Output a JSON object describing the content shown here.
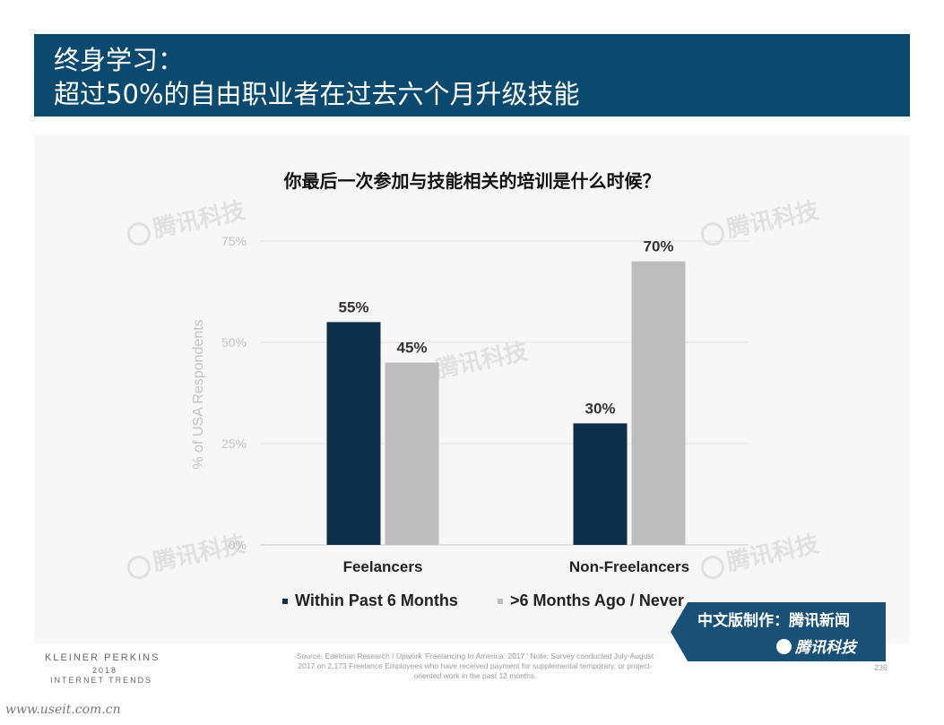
{
  "header": {
    "line1": "终身学习：",
    "line2": "超过50%的自由职业者在过去六个月升级技能",
    "bg_color": "#0b4a6e"
  },
  "chart_data": {
    "type": "bar",
    "title": "你最后一次参加与技能相关的培训是什么时候？",
    "categories": [
      "Feelancers",
      "Non-Freelancers"
    ],
    "series": [
      {
        "name": "Within Past 6 Months",
        "values": [
          55,
          30
        ],
        "color": "#0d2f4a"
      },
      {
        "name": ">6 Months Ago / Never",
        "values": [
          45,
          70
        ],
        "color": "#bdbdbd"
      }
    ],
    "data_labels": [
      [
        "55%",
        "30%"
      ],
      [
        "45%",
        "70%"
      ]
    ],
    "ylabel": "% of USA Respondents",
    "ylim": [
      0,
      75
    ],
    "yticks": [
      0,
      25,
      50,
      75
    ],
    "ytick_labels": [
      "0%",
      "25%",
      "50%",
      "75%"
    ],
    "grid": true,
    "legend_position": "bottom"
  },
  "legend": {
    "item1": "Within Past 6 Months",
    "item2": ">6 Months Ago / Never"
  },
  "watermark": {
    "text": "腾讯科技"
  },
  "badge": {
    "line1": "中文版制作：腾讯新闻",
    "line2": "腾讯科技"
  },
  "footer": {
    "brand_line1": "KLEINER PERKINS",
    "brand_line2": "2018",
    "brand_line3": "INTERNET TRENDS",
    "source": "Source: Edelman Research / Upwork 'Freelancing In America: 2017.' Note: Survey conducted July-August 2017 on 2,173 Freelance Employees who have received payment for supplemental temporary, or project-oriented work in the past 12 months.",
    "page_number": "236",
    "site": "www.useit.com.cn"
  }
}
